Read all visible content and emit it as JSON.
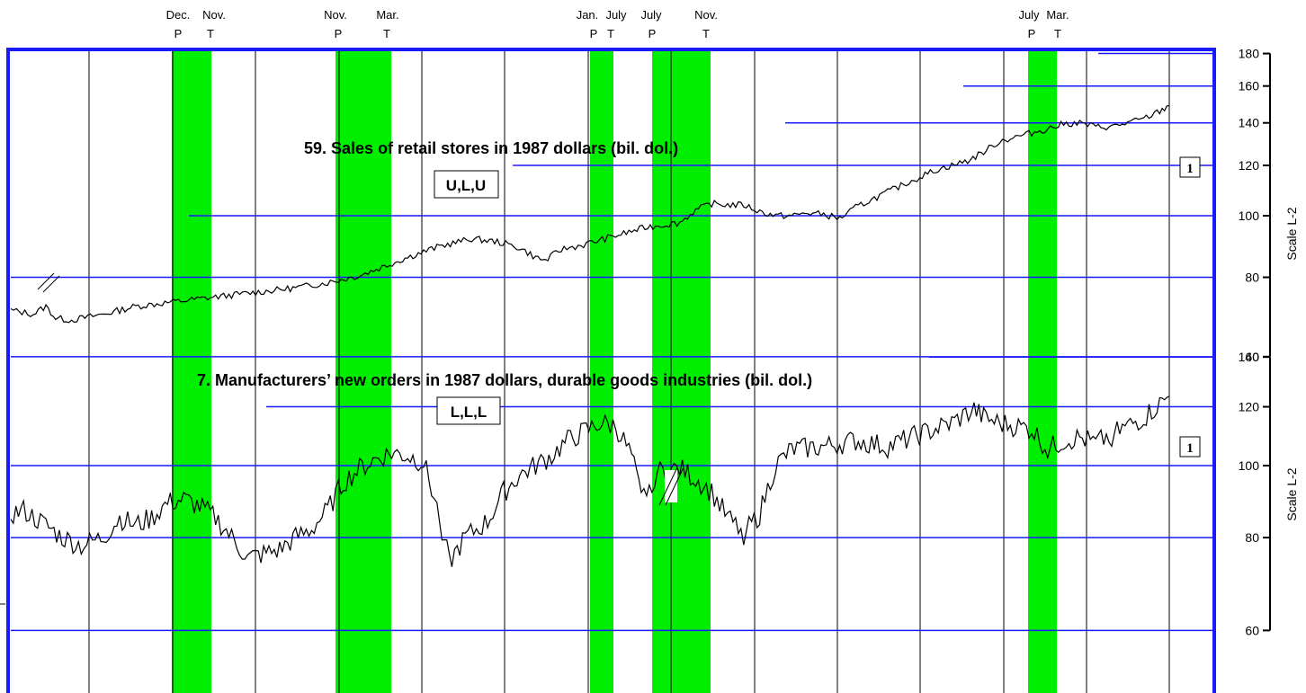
{
  "recession_dates": [
    {
      "date": "Dec.",
      "code": "P"
    },
    {
      "date": "Nov.",
      "code": "T"
    },
    {
      "date": "Nov.",
      "code": "P"
    },
    {
      "date": "Mar.",
      "code": "T"
    },
    {
      "date": "Jan.",
      "code": "P"
    },
    {
      "date": "July",
      "code": "T"
    },
    {
      "date": "July",
      "code": "P"
    },
    {
      "date": "Nov.",
      "code": "T"
    },
    {
      "date": "July",
      "code": "P"
    },
    {
      "date": "Mar.",
      "code": "T"
    }
  ],
  "colors": {
    "recession_band": "#00ee00",
    "frame": "#1a1aff",
    "gridline": "#1a1aff",
    "series_line": "#000000"
  },
  "chart_data": [
    {
      "type": "line",
      "title": "59. Sales of retail stores in 1987 dollars (bil. dol.)",
      "timing_code": "U,L,U",
      "note_marker": "1",
      "scale_label": "Scale L-2",
      "y_scale": "log",
      "ylim": [
        60,
        180
      ],
      "y_ticks": [
        60,
        80,
        100,
        120,
        140,
        160,
        180
      ],
      "x_range": [
        1958.6,
        1994.8
      ],
      "series_anchor_points": [
        [
          1958.6,
          71
        ],
        [
          1959.3,
          70
        ],
        [
          1959.7,
          72
        ],
        [
          1960.0,
          69
        ],
        [
          1960.5,
          68.5
        ],
        [
          1961.5,
          70
        ],
        [
          1962.5,
          72
        ],
        [
          1963.5,
          73
        ],
        [
          1964.5,
          74
        ],
        [
          1965.5,
          75
        ],
        [
          1966.5,
          76
        ],
        [
          1967.5,
          77
        ],
        [
          1968.5,
          78.5
        ],
        [
          1969.5,
          80.5
        ],
        [
          1970.2,
          83
        ],
        [
          1971.0,
          86
        ],
        [
          1972.0,
          89.5
        ],
        [
          1973.0,
          92
        ],
        [
          1973.8,
          91
        ],
        [
          1974.5,
          89
        ],
        [
          1975.0,
          86
        ],
        [
          1975.3,
          85
        ],
        [
          1975.8,
          88.5
        ],
        [
          1976.5,
          90
        ],
        [
          1977.5,
          93
        ],
        [
          1978.5,
          96
        ],
        [
          1979.5,
          97.5
        ],
        [
          1980.0,
          102
        ],
        [
          1980.5,
          104.5
        ],
        [
          1981.0,
          104
        ],
        [
          1981.5,
          104
        ],
        [
          1982.0,
          101.5
        ],
        [
          1982.5,
          100
        ],
        [
          1983.0,
          100
        ],
        [
          1983.5,
          101
        ],
        [
          1984.0,
          100.5
        ],
        [
          1984.5,
          99
        ],
        [
          1985.0,
          103
        ],
        [
          1985.5,
          106
        ],
        [
          1986.0,
          109
        ],
        [
          1986.5,
          112
        ],
        [
          1987.0,
          115
        ],
        [
          1987.5,
          118
        ],
        [
          1988.5,
          122
        ],
        [
          1989.0,
          126
        ],
        [
          1989.5,
          131
        ],
        [
          1990.0,
          133
        ],
        [
          1990.5,
          135
        ],
        [
          1991.0,
          137
        ],
        [
          1991.5,
          139.5
        ],
        [
          1992.0,
          140
        ],
        [
          1992.5,
          138
        ],
        [
          1993.0,
          138
        ],
        [
          1993.5,
          140
        ],
        [
          1994.0,
          142
        ],
        [
          1994.5,
          146
        ],
        [
          1994.8,
          149
        ]
      ]
    },
    {
      "type": "line",
      "title": "7. Manufacturers’ new orders in 1987 dollars, durable goods industries (bil. dol.)",
      "timing_code": "L,L,L",
      "note_marker": "1",
      "scale_label": "Scale L-2",
      "y_scale": "log",
      "ylim": [
        60,
        140
      ],
      "y_ticks": [
        60,
        80,
        100,
        120,
        140
      ],
      "x_range": [
        1958.6,
        1994.8
      ],
      "series_anchor_points": [
        [
          1958.6,
          86
        ],
        [
          1959.0,
          87
        ],
        [
          1959.7,
          83
        ],
        [
          1960.2,
          80
        ],
        [
          1960.8,
          78
        ],
        [
          1961.5,
          80
        ],
        [
          1962.0,
          85
        ],
        [
          1962.5,
          83
        ],
        [
          1963.0,
          85
        ],
        [
          1963.5,
          89
        ],
        [
          1964.0,
          90
        ],
        [
          1964.5,
          88
        ],
        [
          1965.0,
          85
        ],
        [
          1965.5,
          80
        ],
        [
          1966.0,
          75
        ],
        [
          1966.5,
          76
        ],
        [
          1967.0,
          77
        ],
        [
          1967.5,
          80
        ],
        [
          1968.0,
          82
        ],
        [
          1968.5,
          87
        ],
        [
          1969.0,
          95
        ],
        [
          1969.5,
          99
        ],
        [
          1970.0,
          102
        ],
        [
          1970.5,
          104
        ],
        [
          1971.0,
          103
        ],
        [
          1971.5,
          101
        ],
        [
          1972.0,
          85
        ],
        [
          1972.3,
          74
        ],
        [
          1972.8,
          80
        ],
        [
          1973.5,
          84
        ],
        [
          1974.0,
          92
        ],
        [
          1974.5,
          97
        ],
        [
          1975.0,
          100
        ],
        [
          1975.5,
          103
        ],
        [
          1976.0,
          108
        ],
        [
          1976.5,
          111
        ],
        [
          1977.0,
          114
        ],
        [
          1977.5,
          113
        ],
        [
          1978.0,
          103
        ],
        [
          1978.3,
          90
        ],
        [
          1978.8,
          98
        ],
        [
          1979.5,
          99
        ],
        [
          1980.0,
          96
        ],
        [
          1980.5,
          92
        ],
        [
          1981.0,
          85
        ],
        [
          1981.5,
          81
        ],
        [
          1982.0,
          86
        ],
        [
          1982.5,
          100
        ],
        [
          1983.0,
          105
        ],
        [
          1984.0,
          106
        ],
        [
          1985.0,
          108
        ],
        [
          1986.0,
          106
        ],
        [
          1987.0,
          110
        ],
        [
          1988.0,
          114
        ],
        [
          1988.7,
          119
        ],
        [
          1989.0,
          116
        ],
        [
          1989.5,
          114
        ],
        [
          1990.0,
          113
        ],
        [
          1990.5,
          112
        ],
        [
          1991.0,
          105
        ],
        [
          1991.5,
          108
        ],
        [
          1992.0,
          109
        ],
        [
          1992.5,
          107
        ],
        [
          1993.0,
          110
        ],
        [
          1993.5,
          113
        ],
        [
          1994.0,
          116
        ],
        [
          1994.5,
          121
        ],
        [
          1994.8,
          124
        ]
      ]
    }
  ]
}
